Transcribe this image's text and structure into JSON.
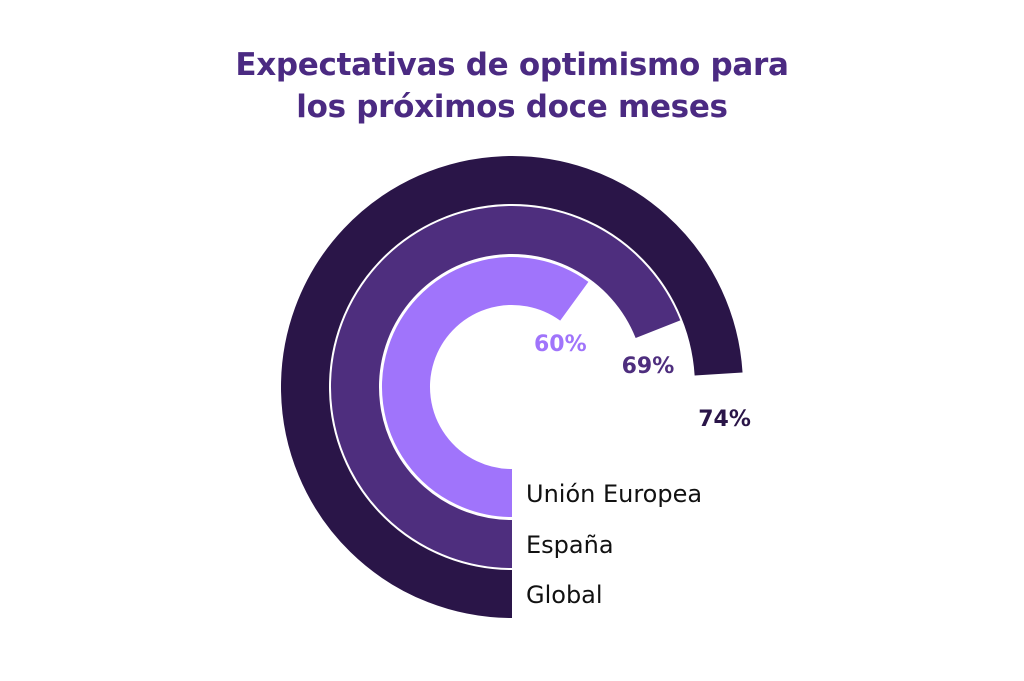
{
  "chart_data": {
    "type": "radial-bar",
    "title": "Expectativas de optimismo para los próximos doce meses",
    "title_lines": [
      "Expectativas de optimismo para",
      "los próximos doce meses"
    ],
    "series": [
      {
        "name": "Unión Europea",
        "value": 60,
        "value_label": "60%",
        "color": "#a074fb"
      },
      {
        "name": "España",
        "value": 69,
        "value_label": "69%",
        "color": "#4e2e7e"
      },
      {
        "name": "Global",
        "value": 74,
        "value_label": "74%",
        "color": "#2a1548"
      }
    ],
    "max": 100
  },
  "colors": {
    "title": "#4b2a82",
    "category_text": "#111111"
  }
}
